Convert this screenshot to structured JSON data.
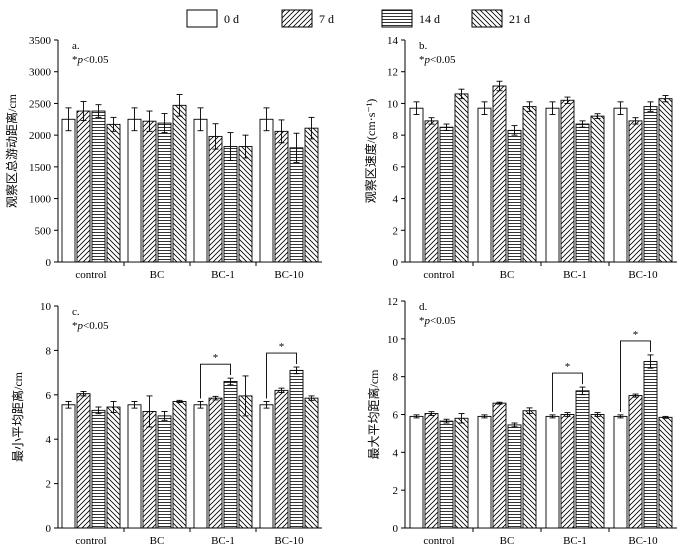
{
  "legend": [
    {
      "label": "0 d",
      "pattern": "none"
    },
    {
      "label": "7 d",
      "pattern": "fwd"
    },
    {
      "label": "14 d",
      "pattern": "horiz"
    },
    {
      "label": "21 d",
      "pattern": "back"
    }
  ],
  "chart_data": [
    {
      "type": "bar",
      "panel": "a.",
      "note": "*p<0.05",
      "ylabel": "观察区总游动距离/cm",
      "ylim": [
        0,
        3500
      ],
      "yticks": [
        0,
        500,
        1000,
        1500,
        2000,
        2500,
        3000,
        3500
      ],
      "categories": [
        "control",
        "BC",
        "BC-1",
        "BC-10"
      ],
      "series": [
        {
          "name": "0 d",
          "values": [
            2250,
            2250,
            2250,
            2250
          ],
          "errors": [
            180,
            180,
            180,
            180
          ]
        },
        {
          "name": "7 d",
          "values": [
            2380,
            2220,
            1980,
            2060
          ],
          "errors": [
            150,
            160,
            200,
            180
          ]
        },
        {
          "name": "14 d",
          "values": [
            2380,
            2190,
            1820,
            1800
          ],
          "errors": [
            100,
            150,
            220,
            230
          ]
        },
        {
          "name": "21 d",
          "values": [
            2170,
            2470,
            1820,
            2110
          ],
          "errors": [
            110,
            170,
            180,
            170
          ]
        }
      ],
      "significance": []
    },
    {
      "type": "bar",
      "panel": "b.",
      "note": "*p<0.05",
      "ylabel": "观察区速度/(cm·s⁻¹)",
      "ylim": [
        0,
        14
      ],
      "yticks": [
        0,
        2,
        4,
        6,
        8,
        10,
        12,
        14
      ],
      "categories": [
        "control",
        "BC",
        "BC-1",
        "BC-10"
      ],
      "series": [
        {
          "name": "0 d",
          "values": [
            9.7,
            9.7,
            9.7,
            9.7
          ],
          "errors": [
            0.4,
            0.4,
            0.4,
            0.4
          ]
        },
        {
          "name": "7 d",
          "values": [
            8.9,
            11.1,
            10.2,
            8.9
          ],
          "errors": [
            0.2,
            0.3,
            0.2,
            0.2
          ]
        },
        {
          "name": "14 d",
          "values": [
            8.5,
            8.3,
            8.7,
            9.8
          ],
          "errors": [
            0.2,
            0.3,
            0.2,
            0.3
          ]
        },
        {
          "name": "21 d",
          "values": [
            10.6,
            9.8,
            9.2,
            10.3
          ],
          "errors": [
            0.3,
            0.3,
            0.15,
            0.2
          ]
        }
      ],
      "significance": []
    },
    {
      "type": "bar",
      "panel": "c.",
      "note": "*p<0.05",
      "ylabel": "最小平均距离/cm",
      "ylim": [
        0,
        10
      ],
      "yticks": [
        0,
        2,
        4,
        6,
        8,
        10
      ],
      "categories": [
        "control",
        "BC",
        "BC-1",
        "BC-10"
      ],
      "series": [
        {
          "name": "0 d",
          "values": [
            5.55,
            5.55,
            5.55,
            5.55
          ],
          "errors": [
            0.15,
            0.15,
            0.15,
            0.15
          ]
        },
        {
          "name": "7 d",
          "values": [
            6.05,
            5.25,
            5.85,
            6.2
          ],
          "errors": [
            0.1,
            0.7,
            0.08,
            0.1
          ]
        },
        {
          "name": "14 d",
          "values": [
            5.3,
            5.05,
            6.6,
            7.1
          ],
          "errors": [
            0.15,
            0.2,
            0.15,
            0.15
          ]
        },
        {
          "name": "21 d",
          "values": [
            5.45,
            5.7,
            5.95,
            5.85
          ],
          "errors": [
            0.25,
            0.05,
            0.9,
            0.1
          ]
        }
      ],
      "significance": [
        {
          "category": "BC-1",
          "from": "0 d",
          "to": "14 d",
          "label": "*"
        },
        {
          "category": "BC-10",
          "from": "0 d",
          "to": "14 d",
          "label": "*"
        }
      ]
    },
    {
      "type": "bar",
      "panel": "d.",
      "note": "*p<0.05",
      "ylabel": "最大平均距离/cm",
      "ylim": [
        0,
        12
      ],
      "yticks": [
        0,
        2,
        4,
        6,
        8,
        10,
        12
      ],
      "categories": [
        "control",
        "BC",
        "BC-1",
        "BC-10"
      ],
      "series": [
        {
          "name": "0 d",
          "values": [
            5.9,
            5.9,
            5.9,
            5.9
          ],
          "errors": [
            0.08,
            0.08,
            0.08,
            0.08
          ]
        },
        {
          "name": "7 d",
          "values": [
            6.05,
            6.6,
            6.0,
            7.0
          ],
          "errors": [
            0.1,
            0.05,
            0.1,
            0.08
          ]
        },
        {
          "name": "14 d",
          "values": [
            5.65,
            5.45,
            7.25,
            8.8
          ],
          "errors": [
            0.1,
            0.1,
            0.2,
            0.35
          ]
        },
        {
          "name": "21 d",
          "values": [
            5.8,
            6.2,
            6.0,
            5.85
          ],
          "errors": [
            0.25,
            0.15,
            0.1,
            0.05
          ]
        }
      ],
      "significance": [
        {
          "category": "BC-1",
          "from": "0 d",
          "to": "14 d",
          "label": "*"
        },
        {
          "category": "BC-10",
          "from": "0 d",
          "to": "14 d",
          "label": "*"
        }
      ]
    }
  ]
}
